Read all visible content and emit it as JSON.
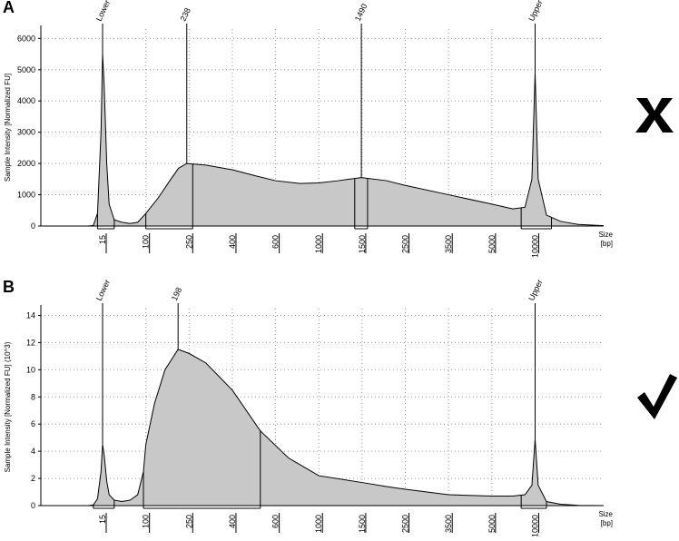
{
  "chart_data": [
    {
      "type": "area",
      "panel": "A",
      "ylabel": "Sample Intensity [Normalized FU]",
      "xlabel": [
        "Size",
        "[bp]"
      ],
      "x": [
        1,
        8,
        10,
        12,
        14,
        15,
        16,
        18,
        20,
        25,
        35,
        50,
        70,
        100,
        130,
        170,
        200,
        238,
        300,
        400,
        500,
        600,
        800,
        1000,
        1200,
        1490,
        2000,
        2500,
        3500,
        5000,
        7000,
        8500,
        9500,
        10000,
        10500,
        12000,
        15000,
        20000,
        30000
      ],
      "values": [
        0,
        0,
        20,
        400,
        3000,
        5500,
        4600,
        2000,
        700,
        200,
        120,
        80,
        120,
        400,
        900,
        1500,
        1850,
        2000,
        1950,
        1800,
        1600,
        1450,
        1360,
        1380,
        1450,
        1550,
        1450,
        1300,
        1000,
        700,
        550,
        600,
        1500,
        4900,
        1500,
        350,
        150,
        50,
        10
      ],
      "color": "#c8c8c8",
      "xlim": [
        1,
        30000
      ],
      "xticks": [
        15,
        100,
        250,
        400,
        600,
        1000,
        1500,
        2500,
        3500,
        5000,
        10000
      ],
      "ylim": [
        0,
        6300
      ],
      "yticks": [
        0,
        1000,
        2000,
        3000,
        4000,
        5000,
        6000
      ],
      "grid": true,
      "markers": [
        {
          "label": "Lower",
          "x": 15
        },
        {
          "x": 238
        },
        {
          "x": 1490
        },
        {
          "label": "Upper",
          "x": 10000
        }
      ],
      "regions": [
        [
          12,
          25
        ],
        [
          100,
          260
        ],
        [
          1400,
          1600
        ],
        [
          8000,
          13000
        ]
      ]
    },
    {
      "type": "area",
      "panel": "B",
      "ylabel": "Sample Intensity [Normalized FU] (10^3)",
      "xlabel": [
        "Size",
        "[bp]"
      ],
      "x": [
        1,
        8,
        10,
        12,
        14,
        15,
        16,
        18,
        20,
        25,
        35,
        50,
        70,
        90,
        100,
        120,
        150,
        198,
        250,
        300,
        400,
        520,
        700,
        1000,
        1500,
        2000,
        2500,
        3500,
        5000,
        7000,
        8500,
        9500,
        10000,
        10500,
        12000,
        15000,
        20000,
        30000
      ],
      "values": [
        0,
        0,
        0.05,
        0.5,
        2.5,
        4.5,
        3.8,
        1.8,
        0.8,
        0.4,
        0.3,
        0.4,
        0.8,
        2.5,
        4.5,
        7.5,
        10,
        11.5,
        11.2,
        10.5,
        8.5,
        5.5,
        3.5,
        2.2,
        1.7,
        1.4,
        1.2,
        0.8,
        0.7,
        0.7,
        0.8,
        1.5,
        4.9,
        1.5,
        0.3,
        0.1,
        0.02,
        0
      ],
      "color": "#c8c8c8",
      "xlim": [
        1,
        30000
      ],
      "xticks": [
        15,
        100,
        250,
        400,
        600,
        1000,
        1500,
        2500,
        3500,
        5000,
        10000
      ],
      "ylim": [
        0,
        14.5
      ],
      "yticks": [
        0,
        2,
        4,
        6,
        8,
        10,
        12,
        14
      ],
      "grid": true,
      "markers": [
        {
          "label": "Lower",
          "x": 15
        },
        {
          "x": 198
        },
        {
          "label": "Upper",
          "x": 10000
        }
      ],
      "regions": [
        [
          10,
          25
        ],
        [
          90,
          520
        ],
        [
          8000,
          12000
        ]
      ]
    }
  ]
}
